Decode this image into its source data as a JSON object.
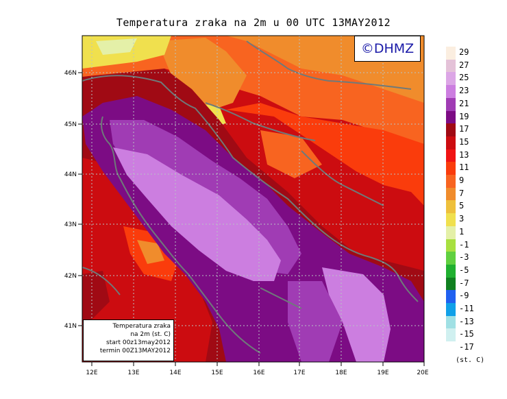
{
  "title": "Temperatura zraka na 2m u 00 UTC 13MAY2012",
  "logo_text": "©DHMZ",
  "info_box": {
    "line1": "Temperatura zraka",
    "line2": "na 2m (st. C)",
    "line3": "start 00z13may2012",
    "line4": "termin 00Z13MAY2012"
  },
  "lat_labels": [
    "46N",
    "45N",
    "44N",
    "43N",
    "42N",
    "41N"
  ],
  "lon_labels": [
    "12E",
    "13E",
    "14E",
    "15E",
    "16E",
    "17E",
    "18E",
    "19E",
    "20E"
  ],
  "legend": {
    "units": "(st. C)",
    "labels": [
      "29",
      "27",
      "25",
      "23",
      "21",
      "19",
      "17",
      "15",
      "13",
      "11",
      "9",
      "7",
      "5",
      "3",
      "1",
      "-1",
      "-3",
      "-5",
      "-7",
      "-9",
      "-11",
      "-13",
      "-15",
      "-17"
    ],
    "colors": [
      "#fbeee0",
      "#e4c2d8",
      "#dca6e6",
      "#cc7ee0",
      "#a03cb4",
      "#7c0c84",
      "#a00a14",
      "#cc0c10",
      "#f01414",
      "#fa3c0c",
      "#f86420",
      "#f08c2c",
      "#eec03c",
      "#f0e04e",
      "#e4f0a8",
      "#a8e040",
      "#60d040",
      "#20b030",
      "#108020",
      "#2060f0",
      "#10a0e8",
      "#a0e0e4",
      "#d0f0f0",
      "#ffffff"
    ]
  }
}
